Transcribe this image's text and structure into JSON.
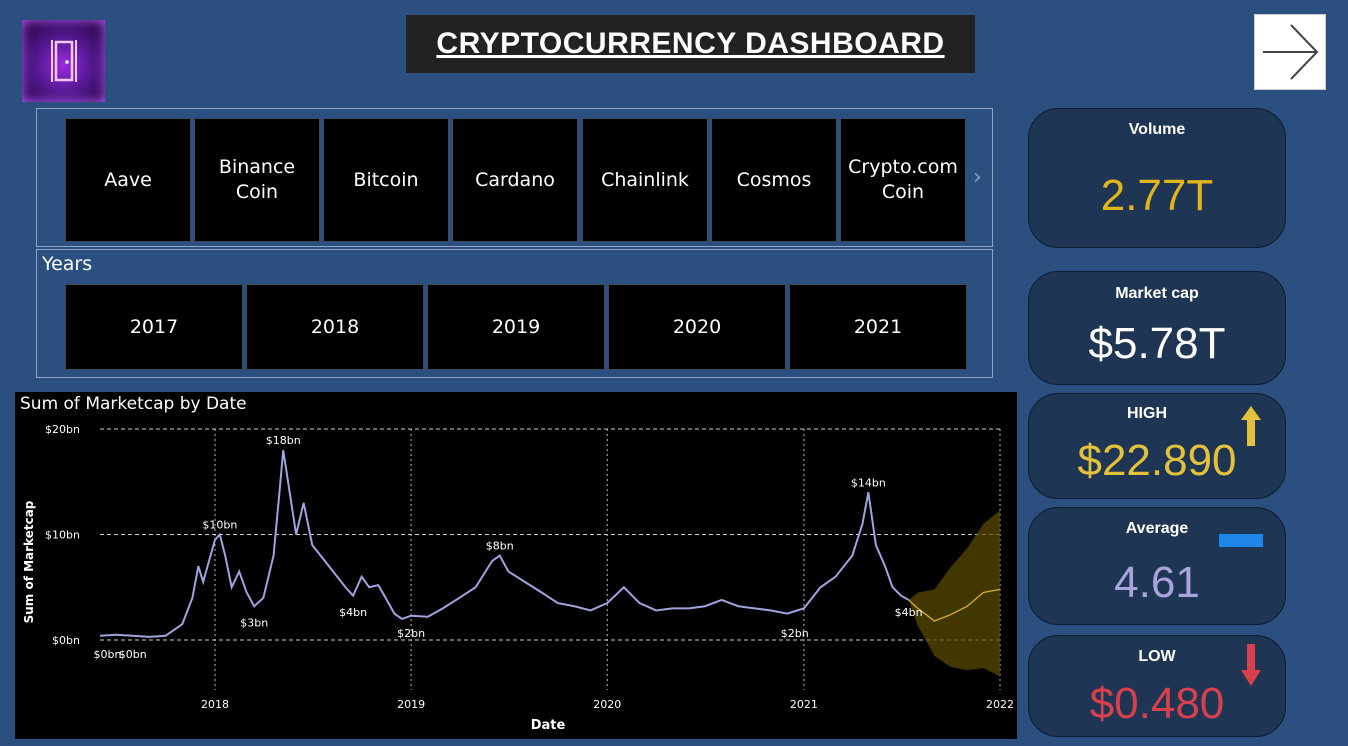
{
  "header": {
    "title": "CRYPTOCURRENCY DASHBOARD",
    "logo_icon": "door-icon",
    "next_icon": "arrow-right-icon"
  },
  "coins": {
    "items": [
      {
        "label": "Aave"
      },
      {
        "label": "Binance Coin"
      },
      {
        "label": "Bitcoin"
      },
      {
        "label": "Cardano"
      },
      {
        "label": "Chainlink"
      },
      {
        "label": "Cosmos"
      },
      {
        "label": "Crypto.com Coin"
      }
    ],
    "scroll_icon": "chevron-right-icon"
  },
  "years": {
    "label": "Years",
    "items": [
      "2017",
      "2018",
      "2019",
      "2020",
      "2021"
    ]
  },
  "cards": {
    "volume": {
      "label": "Volume",
      "value": "2.77T",
      "color": "#e3b51c"
    },
    "market_cap": {
      "label": "Market cap",
      "value": "$5.78T",
      "color": "#ffffff"
    },
    "high": {
      "label": "HIGH",
      "value": "$22.890",
      "color": "#e3c13a",
      "icon": "arrow-up-icon"
    },
    "average": {
      "label": "Average",
      "value": "4.61",
      "color": "#a9a4dc",
      "icon": "dash-icon"
    },
    "low": {
      "label": "LOW",
      "value": "$0.480",
      "color": "#d9404e",
      "icon": "arrow-down-icon"
    }
  },
  "chart_data": {
    "type": "line",
    "title": "Sum of Marketcap by Date",
    "xlabel": "Date",
    "ylabel": "Sum of Marketcap",
    "x_ticks": [
      "2018",
      "2019",
      "2020",
      "2021",
      "2022"
    ],
    "y_ticks": [
      "$0bn",
      "$10bn",
      "$20bn"
    ],
    "ylim": [
      0,
      20
    ],
    "xlim": [
      "2017-06-01",
      "2022-01-01"
    ],
    "grid": true,
    "series": [
      {
        "values": [
          [
            "2017-06-01",
            0.4
          ],
          [
            "2017-07-01",
            0.5
          ],
          [
            "2017-08-01",
            0.4
          ],
          [
            "2017-09-01",
            0.3
          ],
          [
            "2017-10-01",
            0.4
          ],
          [
            "2017-11-01",
            1.5
          ],
          [
            "2017-11-20",
            4
          ],
          [
            "2017-12-01",
            7
          ],
          [
            "2017-12-10",
            5.5
          ],
          [
            "2018-01-01",
            9.5
          ],
          [
            "2018-01-10",
            10
          ],
          [
            "2018-01-20",
            8
          ],
          [
            "2018-02-01",
            5
          ],
          [
            "2018-02-15",
            6.5
          ],
          [
            "2018-03-01",
            4.5
          ],
          [
            "2018-03-15",
            3.2
          ],
          [
            "2018-04-01",
            4
          ],
          [
            "2018-04-20",
            8
          ],
          [
            "2018-05-01",
            14
          ],
          [
            "2018-05-08",
            18
          ],
          [
            "2018-05-20",
            14
          ],
          [
            "2018-06-01",
            10
          ],
          [
            "2018-06-15",
            13
          ],
          [
            "2018-07-01",
            9
          ],
          [
            "2018-08-01",
            7
          ],
          [
            "2018-09-01",
            5
          ],
          [
            "2018-09-15",
            4.2
          ],
          [
            "2018-10-01",
            6
          ],
          [
            "2018-10-15",
            5
          ],
          [
            "2018-11-01",
            5.2
          ],
          [
            "2018-11-20",
            3.5
          ],
          [
            "2018-12-01",
            2.5
          ],
          [
            "2018-12-15",
            2
          ],
          [
            "2019-01-01",
            2.3
          ],
          [
            "2019-02-01",
            2.2
          ],
          [
            "2019-03-01",
            3
          ],
          [
            "2019-04-01",
            4
          ],
          [
            "2019-05-01",
            5
          ],
          [
            "2019-06-01",
            7.5
          ],
          [
            "2019-06-15",
            8
          ],
          [
            "2019-07-01",
            6.5
          ],
          [
            "2019-08-01",
            5.5
          ],
          [
            "2019-09-01",
            4.5
          ],
          [
            "2019-10-01",
            3.5
          ],
          [
            "2019-11-01",
            3.2
          ],
          [
            "2019-12-01",
            2.8
          ],
          [
            "2020-01-01",
            3.5
          ],
          [
            "2020-02-01",
            5
          ],
          [
            "2020-03-01",
            3.5
          ],
          [
            "2020-04-01",
            2.8
          ],
          [
            "2020-05-01",
            3
          ],
          [
            "2020-06-01",
            3
          ],
          [
            "2020-07-01",
            3.2
          ],
          [
            "2020-08-01",
            3.8
          ],
          [
            "2020-09-01",
            3.2
          ],
          [
            "2020-10-01",
            3
          ],
          [
            "2020-11-01",
            2.8
          ],
          [
            "2020-12-01",
            2.5
          ],
          [
            "2021-01-01",
            3
          ],
          [
            "2021-02-01",
            5
          ],
          [
            "2021-03-01",
            6
          ],
          [
            "2021-04-01",
            8
          ],
          [
            "2021-04-20",
            11
          ],
          [
            "2021-05-01",
            14
          ],
          [
            "2021-05-15",
            9
          ],
          [
            "2021-06-01",
            7
          ],
          [
            "2021-06-15",
            5
          ],
          [
            "2021-07-01",
            4.2
          ],
          [
            "2021-07-15",
            3.8
          ]
        ]
      },
      {
        "values": [
          [
            "2021-07-15",
            3.8
          ],
          [
            "2021-08-01",
            3
          ],
          [
            "2021-09-01",
            1.8
          ],
          [
            "2021-10-01",
            2.4
          ],
          [
            "2021-11-01",
            3.2
          ],
          [
            "2021-12-01",
            4.5
          ],
          [
            "2022-01-01",
            4.8
          ]
        ]
      }
    ],
    "data_labels": [
      {
        "x": "2017-06-15",
        "y": 0,
        "text": "$0bn"
      },
      {
        "x": "2017-08-01",
        "y": 0,
        "text": "$0bn"
      },
      {
        "x": "2018-01-10",
        "y": 10,
        "text": "$10bn"
      },
      {
        "x": "2018-03-15",
        "y": 3,
        "text": "$3bn"
      },
      {
        "x": "2018-05-08",
        "y": 18,
        "text": "$18bn"
      },
      {
        "x": "2018-09-15",
        "y": 4,
        "text": "$4bn"
      },
      {
        "x": "2019-01-01",
        "y": 2,
        "text": "$2bn"
      },
      {
        "x": "2019-06-15",
        "y": 8,
        "text": "$8bn"
      },
      {
        "x": "2020-12-15",
        "y": 2,
        "text": "$2bn"
      },
      {
        "x": "2021-05-01",
        "y": 14,
        "text": "$14bn"
      },
      {
        "x": "2021-07-15",
        "y": 4,
        "text": "$4bn"
      }
    ]
  }
}
